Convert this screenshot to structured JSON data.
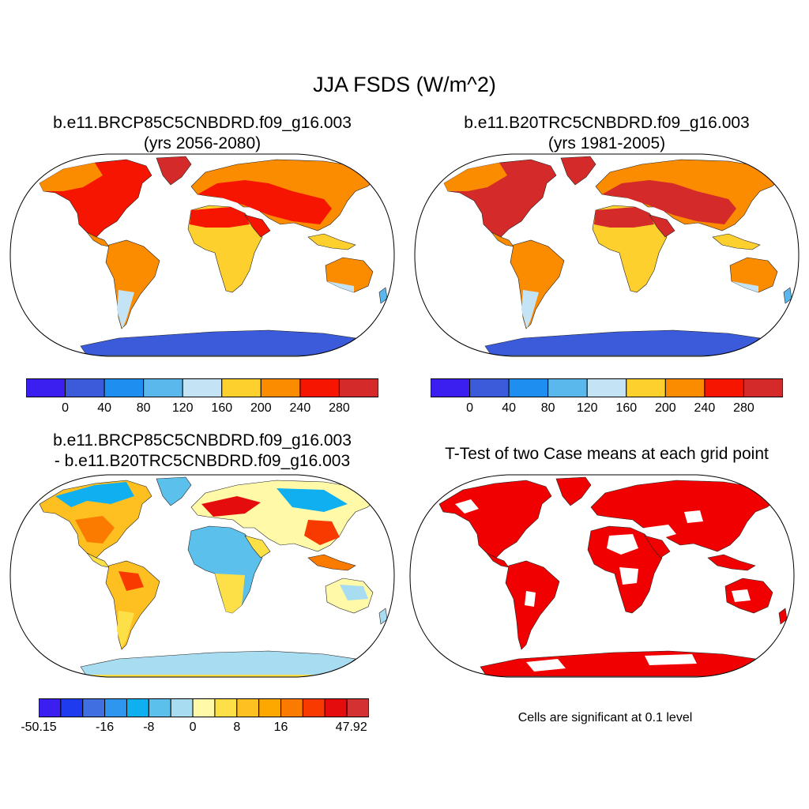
{
  "title": "JJA FSDS (W/m^2)",
  "panels": [
    {
      "id": "future",
      "title_line1": "b.e11.BRCP85C5CNBDRD.f09_g16.003",
      "title_line2": "(yrs 2056-2080)"
    },
    {
      "id": "historical",
      "title_line1": "b.e11.B20TRC5CNBDRD.f09_g16.003",
      "title_line2": "(yrs 1981-2005)"
    },
    {
      "id": "difference",
      "title_line1": "b.e11.BRCP85C5CNBDRD.f09_g16.003",
      "title_line2": "- b.e11.B20TRC5CNBDRD.f09_g16.003"
    },
    {
      "id": "ttest",
      "title_line1": "T-Test of two Case means at each grid point"
    }
  ],
  "colorbar_abs": {
    "colors": [
      "#3a1ff0",
      "#3b5bdb",
      "#1e8ff0",
      "#5ab8ec",
      "#c4e4f5",
      "#fdd02e",
      "#fb8c00",
      "#f51500",
      "#d42a2a"
    ],
    "labels": [
      "0",
      "40",
      "80",
      "120",
      "160",
      "200",
      "240",
      "280"
    ]
  },
  "colorbar_diff": {
    "colors": [
      "#3a1ff0",
      "#1f3bf0",
      "#3f6fe0",
      "#2e96ee",
      "#10b0f0",
      "#5cc0ec",
      "#a8dcf0",
      "#fff9a8",
      "#fde048",
      "#fdc020",
      "#fca800",
      "#fb7a00",
      "#f83a00",
      "#e40c0c",
      "#d43232"
    ],
    "labels": [
      "-50.15",
      "-16",
      "-8",
      "0",
      "8",
      "16",
      "47.92"
    ]
  },
  "significance_note": "Cells are significant at 0.1 level",
  "colors": {
    "ocean": "#ffffff",
    "antarctica_abs": "#3b5bdb",
    "antarctica_diff": "#a8dcf0",
    "significant": "#f00000"
  }
}
